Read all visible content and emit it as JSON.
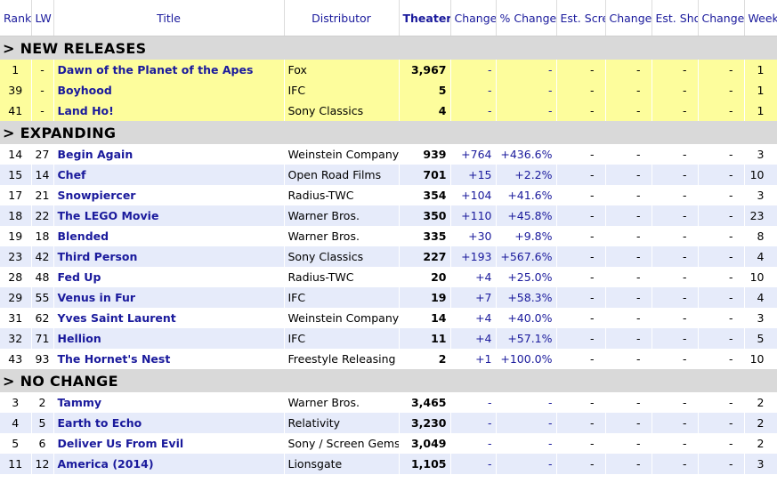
{
  "headers": [
    "Rank",
    "LW",
    "Title",
    "Distributor",
    "Theater Count",
    "Change",
    "% Change",
    "Est. Screens",
    "Change",
    "Est. Shows",
    "Change",
    "Week #"
  ],
  "sections": [
    {
      "label": "> NEW RELEASES",
      "style": "new",
      "rows": [
        {
          "rank": "1",
          "lw": "-",
          "title": "Dawn of the Planet of the Apes",
          "dist": "Fox",
          "count": "3,967",
          "change": "-",
          "pct": "-",
          "screens": "-",
          "schange": "-",
          "shows": "-",
          "shchange": "-",
          "week": "1"
        },
        {
          "rank": "39",
          "lw": "-",
          "title": "Boyhood",
          "dist": "IFC",
          "count": "5",
          "change": "-",
          "pct": "-",
          "screens": "-",
          "schange": "-",
          "shows": "-",
          "shchange": "-",
          "week": "1"
        },
        {
          "rank": "41",
          "lw": "-",
          "title": "Land Ho!",
          "dist": "Sony Classics",
          "count": "4",
          "change": "-",
          "pct": "-",
          "screens": "-",
          "schange": "-",
          "shows": "-",
          "shchange": "-",
          "week": "1"
        }
      ]
    },
    {
      "label": "> EXPANDING",
      "style": "alt",
      "rows": [
        {
          "rank": "14",
          "lw": "27",
          "title": "Begin Again",
          "dist": "Weinstein Company",
          "count": "939",
          "change": "+764",
          "pct": "+436.6%",
          "screens": "-",
          "schange": "-",
          "shows": "-",
          "shchange": "-",
          "week": "3"
        },
        {
          "rank": "15",
          "lw": "14",
          "title": "Chef",
          "dist": "Open Road Films",
          "count": "701",
          "change": "+15",
          "pct": "+2.2%",
          "screens": "-",
          "schange": "-",
          "shows": "-",
          "shchange": "-",
          "week": "10"
        },
        {
          "rank": "17",
          "lw": "21",
          "title": "Snowpiercer",
          "dist": "Radius-TWC",
          "count": "354",
          "change": "+104",
          "pct": "+41.6%",
          "screens": "-",
          "schange": "-",
          "shows": "-",
          "shchange": "-",
          "week": "3"
        },
        {
          "rank": "18",
          "lw": "22",
          "title": "The LEGO Movie",
          "dist": "Warner Bros.",
          "count": "350",
          "change": "+110",
          "pct": "+45.8%",
          "screens": "-",
          "schange": "-",
          "shows": "-",
          "shchange": "-",
          "week": "23"
        },
        {
          "rank": "19",
          "lw": "18",
          "title": "Blended",
          "dist": "Warner Bros.",
          "count": "335",
          "change": "+30",
          "pct": "+9.8%",
          "screens": "-",
          "schange": "-",
          "shows": "-",
          "shchange": "-",
          "week": "8"
        },
        {
          "rank": "23",
          "lw": "42",
          "title": "Third Person",
          "dist": "Sony Classics",
          "count": "227",
          "change": "+193",
          "pct": "+567.6%",
          "screens": "-",
          "schange": "-",
          "shows": "-",
          "shchange": "-",
          "week": "4"
        },
        {
          "rank": "28",
          "lw": "48",
          "title": "Fed Up",
          "dist": "Radius-TWC",
          "count": "20",
          "change": "+4",
          "pct": "+25.0%",
          "screens": "-",
          "schange": "-",
          "shows": "-",
          "shchange": "-",
          "week": "10"
        },
        {
          "rank": "29",
          "lw": "55",
          "title": "Venus in Fur",
          "dist": "IFC",
          "count": "19",
          "change": "+7",
          "pct": "+58.3%",
          "screens": "-",
          "schange": "-",
          "shows": "-",
          "shchange": "-",
          "week": "4"
        },
        {
          "rank": "31",
          "lw": "62",
          "title": "Yves Saint Laurent",
          "dist": "Weinstein Company",
          "count": "14",
          "change": "+4",
          "pct": "+40.0%",
          "screens": "-",
          "schange": "-",
          "shows": "-",
          "shchange": "-",
          "week": "3"
        },
        {
          "rank": "32",
          "lw": "71",
          "title": "Hellion",
          "dist": "IFC",
          "count": "11",
          "change": "+4",
          "pct": "+57.1%",
          "screens": "-",
          "schange": "-",
          "shows": "-",
          "shchange": "-",
          "week": "5"
        },
        {
          "rank": "43",
          "lw": "93",
          "title": "The Hornet's Nest",
          "dist": "Freestyle Releasing",
          "count": "2",
          "change": "+1",
          "pct": "+100.0%",
          "screens": "-",
          "schange": "-",
          "shows": "-",
          "shchange": "-",
          "week": "10"
        }
      ]
    },
    {
      "label": "> NO CHANGE",
      "style": "alt",
      "rows": [
        {
          "rank": "3",
          "lw": "2",
          "title": "Tammy",
          "dist": "Warner Bros.",
          "count": "3,465",
          "change": "-",
          "pct": "-",
          "screens": "-",
          "schange": "-",
          "shows": "-",
          "shchange": "-",
          "week": "2"
        },
        {
          "rank": "4",
          "lw": "5",
          "title": "Earth to Echo",
          "dist": "Relativity",
          "count": "3,230",
          "change": "-",
          "pct": "-",
          "screens": "-",
          "schange": "-",
          "shows": "-",
          "shchange": "-",
          "week": "2"
        },
        {
          "rank": "5",
          "lw": "6",
          "title": "Deliver Us From Evil",
          "dist": "Sony / Screen Gems",
          "count": "3,049",
          "change": "-",
          "pct": "-",
          "screens": "-",
          "schange": "-",
          "shows": "-",
          "shchange": "-",
          "week": "2"
        },
        {
          "rank": "11",
          "lw": "12",
          "title": "America (2014)",
          "dist": "Lionsgate",
          "count": "1,105",
          "change": "-",
          "pct": "-",
          "screens": "-",
          "schange": "-",
          "shows": "-",
          "shchange": "-",
          "week": "3"
        }
      ]
    }
  ]
}
